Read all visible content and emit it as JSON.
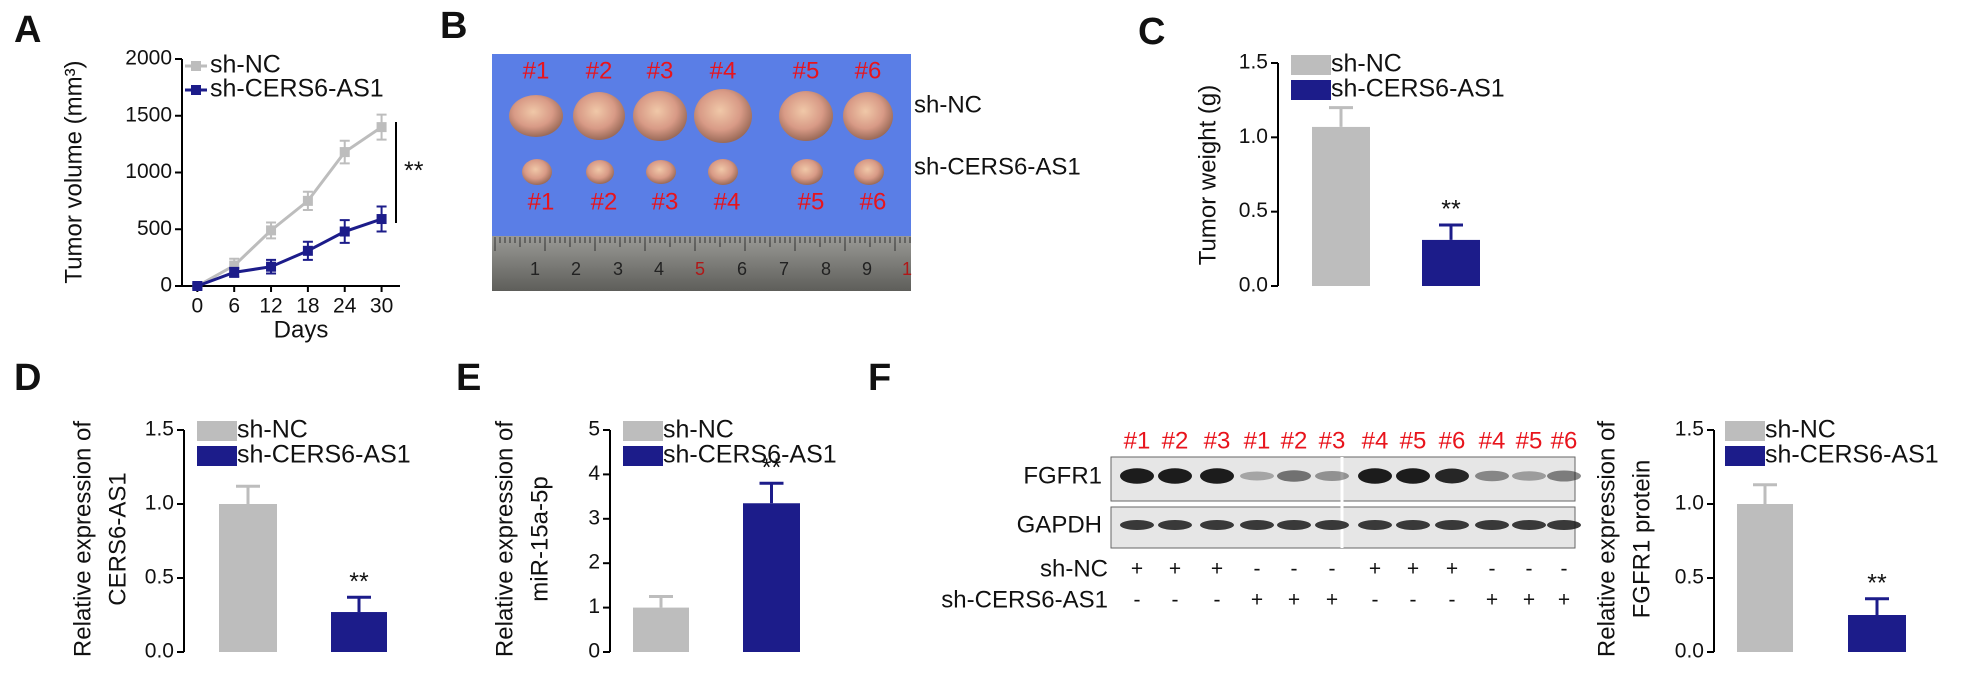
{
  "panels": [
    "A",
    "B",
    "C",
    "D",
    "E",
    "F"
  ],
  "photo": {
    "top_labels": [
      "#1",
      "#2",
      "#3",
      "#4",
      "#5",
      "#6"
    ],
    "bottom_labels": [
      "#1",
      "#2",
      "#3",
      "#4",
      "#5",
      "#6"
    ],
    "groups": [
      "sh-NC",
      "sh-CERS6-AS1"
    ],
    "ruler": [
      "1",
      "2",
      "3",
      "4",
      "5",
      "6",
      "7",
      "8",
      "9",
      "1"
    ]
  },
  "blot": {
    "lanes": [
      "#1",
      "#2",
      "#3",
      "#1",
      "#2",
      "#3",
      "#4",
      "#5",
      "#6",
      "#4",
      "#5",
      "#6"
    ],
    "proteins": [
      "FGFR1",
      "GAPDH"
    ],
    "rows": [
      {
        "name": "sh-NC",
        "marks": [
          "+",
          "+",
          "+",
          "-",
          "-",
          "-",
          "+",
          "+",
          "+",
          "-",
          "-",
          "-"
        ]
      },
      {
        "name": "sh-CERS6-AS1",
        "marks": [
          "-",
          "-",
          "-",
          "+",
          "+",
          "+",
          "-",
          "-",
          "-",
          "+",
          "+",
          "+"
        ]
      }
    ]
  },
  "chart_data": [
    {
      "type": "line",
      "ylabel": [
        "Tumor volume (mm³)"
      ],
      "xlabel": "Days",
      "annotation": "**",
      "x": [
        0,
        6,
        12,
        18,
        24,
        30
      ],
      "xlim": [
        -2.5,
        33
      ],
      "xticks": [
        0,
        6,
        12,
        18,
        24,
        30
      ],
      "ylim": [
        0,
        2000
      ],
      "yticks": [
        0,
        500,
        1000,
        1500,
        2000
      ],
      "series": [
        {
          "name": "sh-NC",
          "color": "#bdbdbd",
          "values": [
            0,
            180,
            490,
            750,
            1180,
            1400
          ],
          "errors": [
            20,
            60,
            70,
            80,
            100,
            110
          ]
        },
        {
          "name": "sh-CERS6-AS1",
          "color": "#1c1c8a",
          "values": [
            0,
            120,
            170,
            310,
            480,
            590
          ],
          "errors": [
            20,
            40,
            60,
            80,
            100,
            110
          ]
        }
      ]
    },
    {
      "type": "bar",
      "ylabel": [
        "Tumor weight (g)"
      ],
      "annotation": "**",
      "ylim": [
        0,
        1.5
      ],
      "yticks": [
        {
          "value": 0,
          "label": "0.0"
        },
        {
          "value": 0.5,
          "label": "0.5"
        },
        {
          "value": 1,
          "label": "1.0"
        },
        {
          "value": 1.5,
          "label": "1.5"
        }
      ],
      "series": [
        {
          "name": "sh-NC",
          "color": "#bdbdbd",
          "values": [
            1.07
          ],
          "errors": [
            0.13
          ]
        },
        {
          "name": "sh-CERS6-AS1",
          "color": "#1c1c8a",
          "values": [
            0.31
          ],
          "errors": [
            0.1
          ]
        }
      ]
    },
    {
      "type": "bar",
      "ylabel": [
        "Relative expression of",
        "CERS6-AS1"
      ],
      "annotation": "**",
      "ylim": [
        0,
        1.5
      ],
      "yticks": [
        {
          "value": 0,
          "label": "0.0"
        },
        {
          "value": 0.5,
          "label": "0.5"
        },
        {
          "value": 1,
          "label": "1.0"
        },
        {
          "value": 1.5,
          "label": "1.5"
        }
      ],
      "series": [
        {
          "name": "sh-NC",
          "color": "#bdbdbd",
          "values": [
            1.0
          ],
          "errors": [
            0.12
          ]
        },
        {
          "name": "sh-CERS6-AS1",
          "color": "#1c1c8a",
          "values": [
            0.27
          ],
          "errors": [
            0.1
          ]
        }
      ]
    },
    {
      "type": "bar",
      "ylabel": [
        "Relative expression of",
        "miR-15a-5p"
      ],
      "annotation": "**",
      "ylim": [
        0,
        5
      ],
      "yticks": [
        0,
        1,
        2,
        3,
        4,
        5
      ],
      "series": [
        {
          "name": "sh-NC",
          "color": "#bdbdbd",
          "values": [
            1.0
          ],
          "errors": [
            0.25
          ]
        },
        {
          "name": "sh-CERS6-AS1",
          "color": "#1c1c8a",
          "values": [
            3.35
          ],
          "errors": [
            0.45
          ]
        }
      ]
    },
    {
      "type": "bar",
      "ylabel": [
        "Relative expression of",
        "FGFR1 protein"
      ],
      "annotation": "**",
      "ylim": [
        0,
        1.5
      ],
      "yticks": [
        {
          "value": 0,
          "label": "0.0"
        },
        {
          "value": 0.5,
          "label": "0.5"
        },
        {
          "value": 1,
          "label": "1.0"
        },
        {
          "value": 1.5,
          "label": "1.5"
        }
      ],
      "series": [
        {
          "name": "sh-NC",
          "color": "#bdbdbd",
          "values": [
            1.0
          ],
          "errors": [
            0.13
          ]
        },
        {
          "name": "sh-CERS6-AS1",
          "color": "#1c1c8a",
          "values": [
            0.25
          ],
          "errors": [
            0.11
          ]
        }
      ]
    }
  ]
}
